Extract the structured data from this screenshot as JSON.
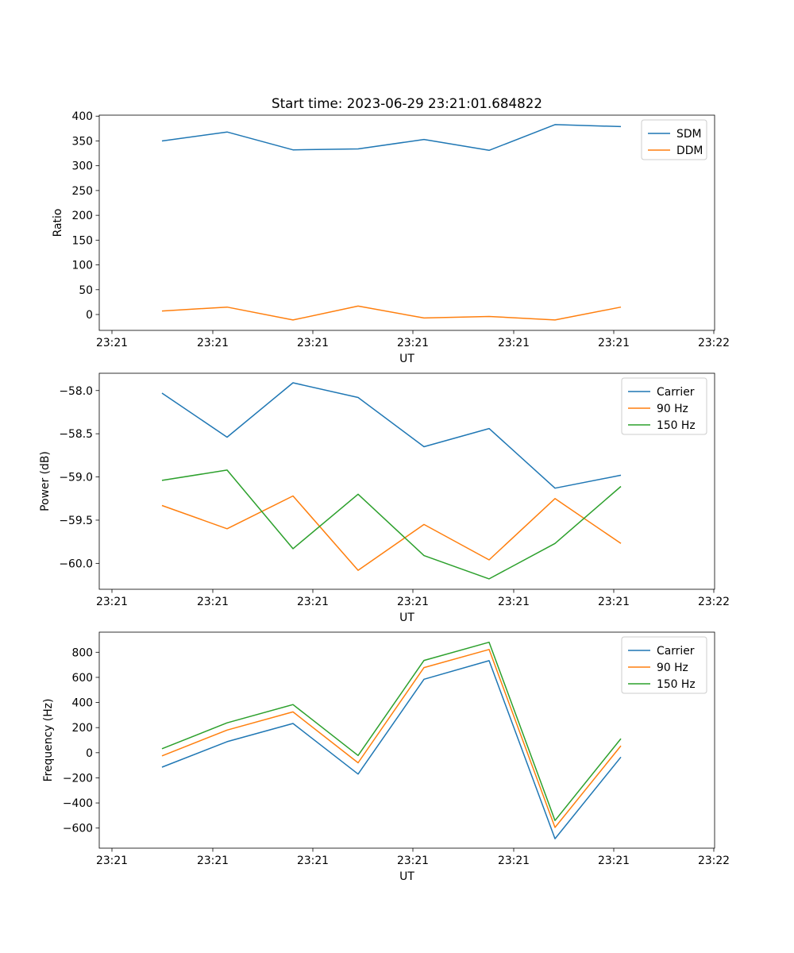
{
  "figure": {
    "title": "Start time: 2023-06-29 23:21:01.684822"
  },
  "chart_data": [
    {
      "type": "line",
      "xlabel": "UT",
      "ylabel": "Ratio",
      "x_tick_labels": [
        "23:21",
        "23:21",
        "23:21",
        "23:21",
        "23:21",
        "23:21",
        "23:22"
      ],
      "yticks": [
        0,
        50,
        100,
        150,
        200,
        250,
        300,
        350,
        400
      ],
      "y_tick_labels": [
        "0",
        "50",
        "100",
        "150",
        "200",
        "250",
        "300",
        "350",
        "400"
      ],
      "ylim": [
        -32,
        402
      ],
      "legend_position": "upper-right",
      "grid": false,
      "series": [
        {
          "name": "SDM",
          "color": "#1f77b4",
          "values": [
            350,
            368,
            332,
            334,
            353,
            331,
            383,
            379
          ]
        },
        {
          "name": "DDM",
          "color": "#ff7f0e",
          "values": [
            7,
            15,
            -11,
            17,
            -7,
            -4,
            -11,
            15
          ]
        }
      ]
    },
    {
      "type": "line",
      "xlabel": "UT",
      "ylabel": "Power (dB)",
      "x_tick_labels": [
        "23:21",
        "23:21",
        "23:21",
        "23:21",
        "23:21",
        "23:21",
        "23:22"
      ],
      "yticks": [
        -60.0,
        -59.5,
        -59.0,
        -58.5,
        -58.0
      ],
      "y_tick_labels": [
        "−60.0",
        "−59.5",
        "−59.0",
        "−58.5",
        "−58.0"
      ],
      "ylim": [
        -60.3,
        -57.8
      ],
      "legend_position": "upper-right",
      "grid": false,
      "series": [
        {
          "name": "Carrier",
          "color": "#1f77b4",
          "values": [
            -58.03,
            -58.54,
            -57.91,
            -58.08,
            -58.65,
            -58.44,
            -59.13,
            -58.98
          ]
        },
        {
          "name": "90 Hz",
          "color": "#ff7f0e",
          "values": [
            -59.33,
            -59.6,
            -59.22,
            -60.08,
            -59.55,
            -59.96,
            -59.25,
            -59.77
          ]
        },
        {
          "name": "150 Hz",
          "color": "#2ca02c",
          "values": [
            -59.04,
            -58.92,
            -59.83,
            -59.2,
            -59.91,
            -60.18,
            -59.77,
            -59.11
          ]
        }
      ]
    },
    {
      "type": "line",
      "xlabel": "UT",
      "ylabel": "Frequency (Hz)",
      "x_tick_labels": [
        "23:21",
        "23:21",
        "23:21",
        "23:21",
        "23:21",
        "23:21",
        "23:22"
      ],
      "yticks": [
        -600,
        -400,
        -200,
        0,
        200,
        400,
        600,
        800
      ],
      "y_tick_labels": [
        "−600",
        "−400",
        "−200",
        "0",
        "200",
        "400",
        "600",
        "800"
      ],
      "ylim": [
        -760,
        960
      ],
      "legend_position": "upper-right",
      "grid": false,
      "series": [
        {
          "name": "Carrier",
          "color": "#1f77b4",
          "values": [
            -115,
            88,
            233,
            -170,
            585,
            733,
            -685,
            -35
          ]
        },
        {
          "name": "90 Hz",
          "color": "#ff7f0e",
          "values": [
            -25,
            180,
            325,
            -80,
            678,
            822,
            -595,
            55
          ]
        },
        {
          "name": "150 Hz",
          "color": "#2ca02c",
          "values": [
            32,
            238,
            383,
            -22,
            735,
            880,
            -540,
            112
          ]
        }
      ]
    }
  ]
}
